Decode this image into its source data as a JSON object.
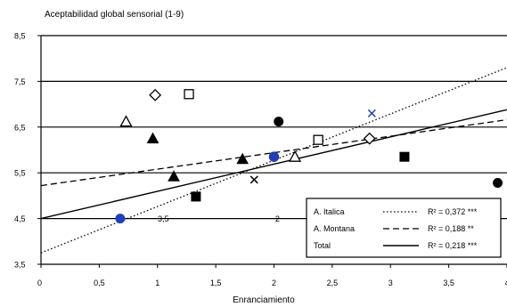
{
  "chart_data": {
    "type": "scatter",
    "title": "",
    "ylabel": "Aceptabilidad global sensorial (1-9)",
    "xlabel": "Enranciamiento",
    "xlim": [
      0,
      4
    ],
    "ylim": [
      3.5,
      8.5
    ],
    "x_ticks": [
      {
        "value": 0,
        "label": "0"
      },
      {
        "value": 0.5,
        "label": "0,5"
      },
      {
        "value": 1,
        "label": "1"
      },
      {
        "value": 1.5,
        "label": "1,5"
      },
      {
        "value": 2,
        "label": "2"
      },
      {
        "value": 2.5,
        "label": "2,5"
      },
      {
        "value": 3,
        "label": "3"
      },
      {
        "value": 3.5,
        "label": "3,5"
      },
      {
        "value": 4,
        "label": "4"
      }
    ],
    "y_ticks": [
      {
        "value": 3.5,
        "label": "3,5"
      },
      {
        "value": 4.5,
        "label": "4,5"
      },
      {
        "value": 5.5,
        "label": "5,5"
      },
      {
        "value": 6.5,
        "label": "6,5"
      },
      {
        "value": 7.5,
        "label": "7,5"
      },
      {
        "value": 8.5,
        "label": "8,5"
      }
    ],
    "grid": "horizontal",
    "legend_position": "bottom-right",
    "points": [
      {
        "x": 0.73,
        "y": 6.62,
        "marker": "triangle-open",
        "color": "#000000"
      },
      {
        "x": 0.98,
        "y": 7.2,
        "marker": "diamond-open",
        "color": "#000000"
      },
      {
        "x": 1.27,
        "y": 7.22,
        "marker": "square-open",
        "color": "#000000"
      },
      {
        "x": 0.96,
        "y": 6.25,
        "marker": "triangle-filled",
        "color": "#000000"
      },
      {
        "x": 1.14,
        "y": 5.42,
        "marker": "triangle-filled",
        "color": "#000000"
      },
      {
        "x": 1.33,
        "y": 4.98,
        "marker": "square-filled",
        "color": "#000000"
      },
      {
        "x": 1.73,
        "y": 5.8,
        "marker": "triangle-filled",
        "color": "#000000"
      },
      {
        "x": 1.83,
        "y": 5.35,
        "marker": "x",
        "color": "#000000"
      },
      {
        "x": 2.04,
        "y": 6.62,
        "marker": "circle-filled",
        "color": "#000000"
      },
      {
        "x": 2.0,
        "y": 5.85,
        "marker": "circle-open",
        "color": "#000000"
      },
      {
        "x": 2.18,
        "y": 5.85,
        "marker": "triangle-open",
        "color": "#000000"
      },
      {
        "x": 2.38,
        "y": 6.22,
        "marker": "square-open",
        "color": "#000000"
      },
      {
        "x": 2.82,
        "y": 6.25,
        "marker": "diamond-open",
        "color": "#000000"
      },
      {
        "x": 2.84,
        "y": 6.8,
        "marker": "x",
        "color": "#1f3fbf"
      },
      {
        "x": 3.12,
        "y": 5.85,
        "marker": "square-filled",
        "color": "#000000"
      },
      {
        "x": 3.92,
        "y": 5.28,
        "marker": "circle-filled",
        "color": "#000000"
      },
      {
        "x": 0.68,
        "y": 4.5,
        "marker": "circle-filled",
        "color": "#1f3fbf"
      },
      {
        "x": 2.0,
        "y": 5.85,
        "marker": "circle-filled",
        "color": "#1f3fbf"
      }
    ],
    "stray_labels": [
      {
        "x": 1.05,
        "y": 4.5,
        "text": "3,5"
      },
      {
        "x": 2.03,
        "y": 4.5,
        "text": "2"
      }
    ],
    "series": [
      {
        "name": "A. Italica",
        "style": "dotted",
        "line": [
          [
            0,
            3.75
          ],
          [
            4,
            7.8
          ]
        ],
        "r2_text": "R² = 0,372 ***"
      },
      {
        "name": "A. Montana",
        "style": "dashed",
        "line": [
          [
            0,
            5.22
          ],
          [
            4,
            6.66
          ]
        ],
        "r2_text": "R² = 0,188 **"
      },
      {
        "name": "Total",
        "style": "solid",
        "line": [
          [
            0,
            4.5
          ],
          [
            4,
            6.88
          ]
        ],
        "r2_text": "R² = 0,218 ***"
      }
    ],
    "blue_color": "#1f3fbf",
    "line_color": "#000000"
  }
}
